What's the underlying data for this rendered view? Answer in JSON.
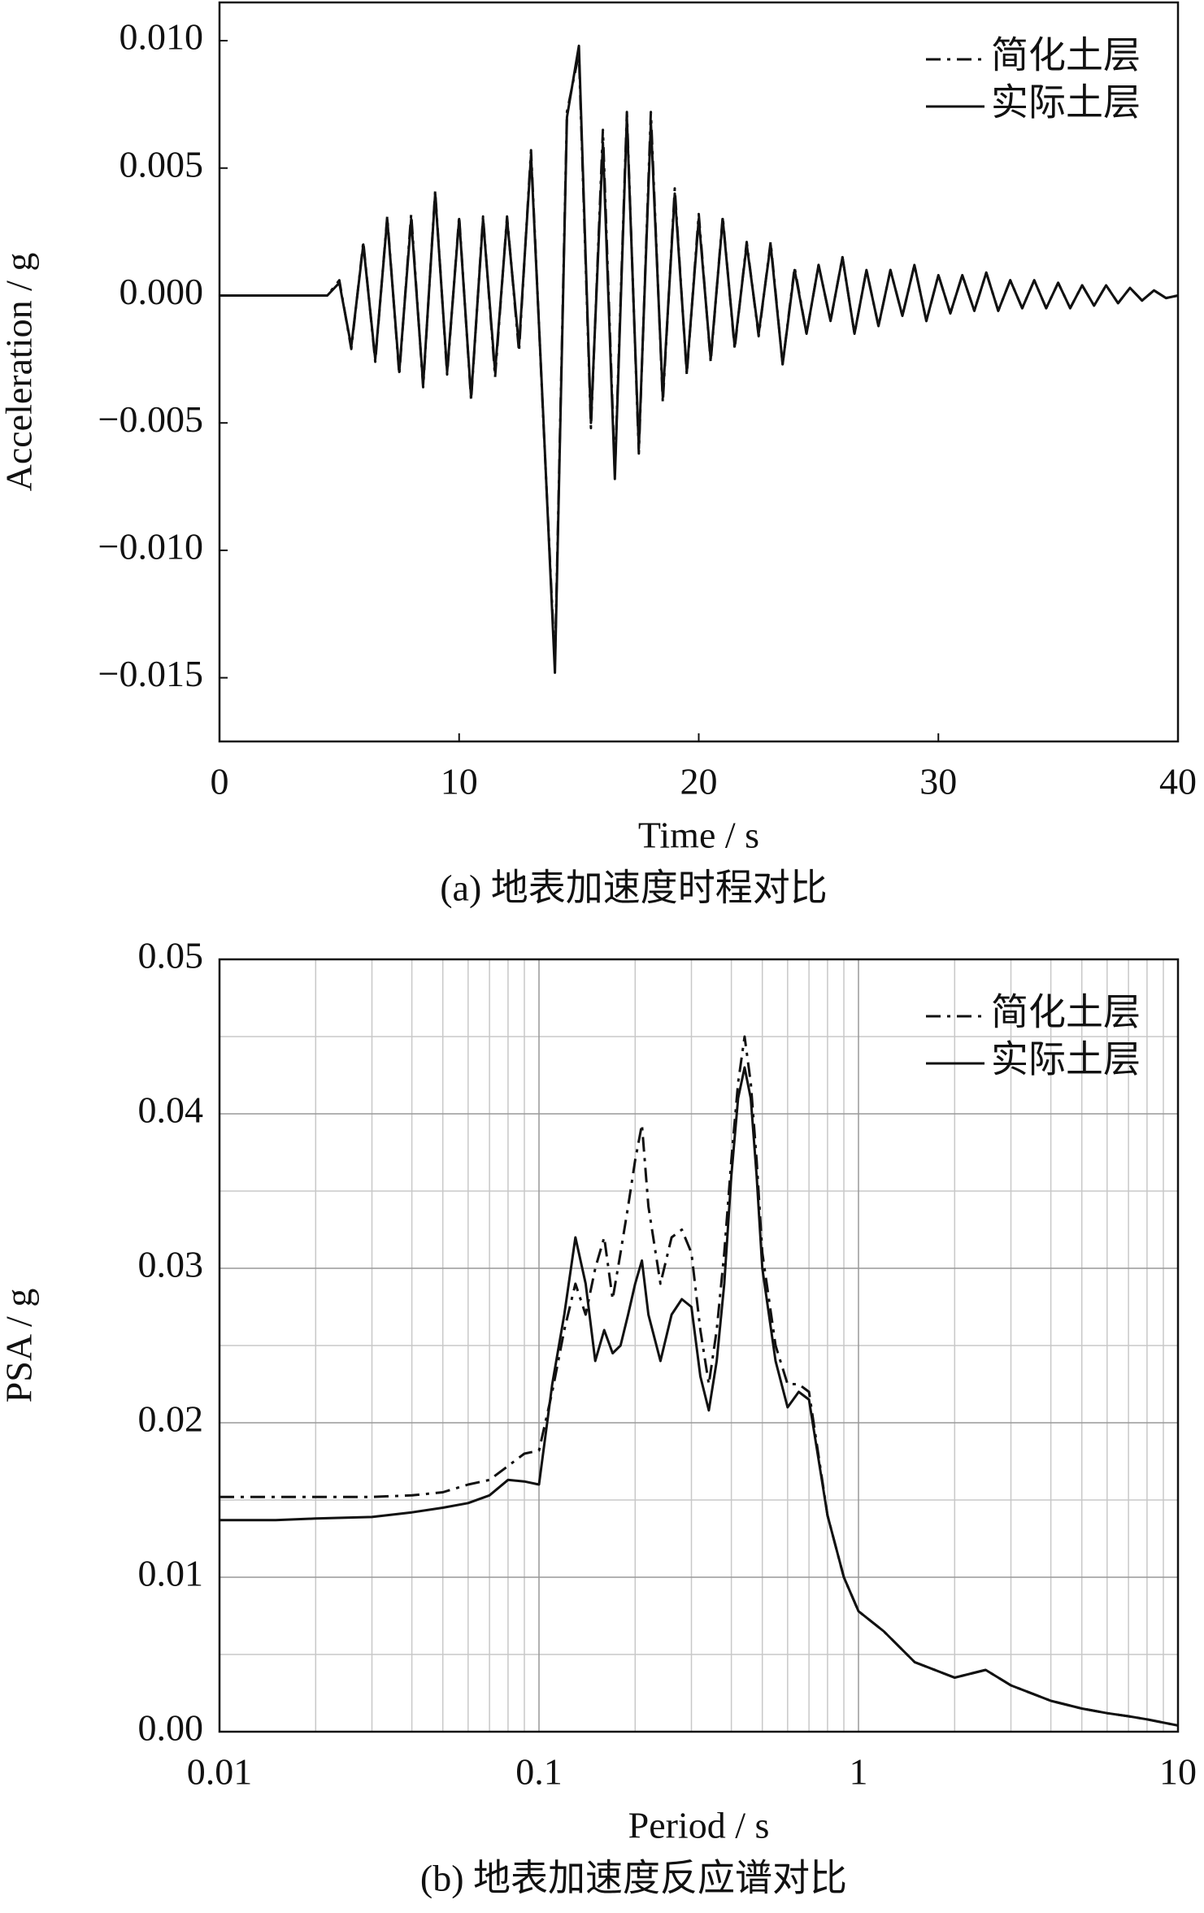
{
  "chart_data": [
    {
      "type": "line",
      "caption": "(a) 地表加速度时程对比",
      "xlabel": "Time / s",
      "ylabel": "Acceleration / g",
      "x": [
        0,
        0.5,
        1,
        1.5,
        2,
        2.5,
        3,
        3.5,
        4,
        4.5,
        5,
        5.5,
        6,
        6.5,
        7,
        7.5,
        8,
        8.5,
        9,
        9.5,
        10,
        10.5,
        11,
        11.5,
        12,
        12.5,
        13,
        13.5,
        14,
        14.5,
        15,
        15.5,
        16,
        16.5,
        17,
        17.5,
        18,
        18.5,
        19,
        19.5,
        20,
        20.5,
        21,
        21.5,
        22,
        22.5,
        23,
        23.5,
        24,
        24.5,
        25,
        25.5,
        26,
        26.5,
        27,
        27.5,
        28,
        28.5,
        29,
        29.5,
        30,
        30.5,
        31,
        31.5,
        32,
        32.5,
        33,
        33.5,
        34,
        34.5,
        35,
        35.5,
        36,
        36.5,
        37,
        37.5,
        38,
        38.5,
        39,
        39.5,
        40
      ],
      "series": [
        {
          "name": "简化土层",
          "style": "dashdot",
          "color": "#111111",
          "values": [
            0,
            0,
            0,
            0,
            0,
            0,
            0,
            0,
            0,
            0,
            0.0006,
            -0.0021,
            0.0021,
            -0.0026,
            0.0031,
            -0.0031,
            0.0032,
            -0.0036,
            0.0041,
            -0.0031,
            0.0031,
            -0.0041,
            0.0031,
            -0.0032,
            0.0031,
            -0.0022,
            0.0057,
            -0.0046,
            -0.0145,
            0.0072,
            0.0095,
            -0.0052,
            0.0065,
            -0.007,
            0.0072,
            -0.0062,
            0.0072,
            -0.0042,
            0.0042,
            -0.0031,
            0.0032,
            -0.0026,
            0.0031,
            -0.0021,
            0.0021,
            -0.0016,
            0.0021,
            -0.0027,
            0.0011,
            -0.0015,
            0.0012,
            -0.001,
            0.0015,
            -0.0015,
            0.001,
            -0.0012,
            0.001,
            -0.0008,
            0.0012,
            -0.001,
            0.0008,
            -0.0007,
            0.0008,
            -0.0006,
            0.0009,
            -0.0006,
            0.0006,
            -0.0005,
            0.0006,
            -0.0005,
            0.0005,
            -0.0005,
            0.0004,
            -0.0004,
            0.0004,
            -0.0003,
            0.0003,
            -0.0002,
            0.0002,
            -0.0001,
            0
          ]
        },
        {
          "name": "实际土层",
          "style": "solid",
          "color": "#111111",
          "values": [
            0,
            0,
            0,
            0,
            0,
            0,
            0,
            0,
            0,
            0,
            0.0005,
            -0.002,
            0.002,
            -0.0025,
            0.003,
            -0.003,
            0.003,
            -0.0035,
            0.004,
            -0.003,
            0.003,
            -0.004,
            0.003,
            -0.003,
            0.003,
            -0.002,
            0.0055,
            -0.0045,
            -0.0148,
            0.007,
            0.0098,
            -0.005,
            0.006,
            -0.0072,
            0.007,
            -0.006,
            0.0068,
            -0.004,
            0.004,
            -0.003,
            0.003,
            -0.0025,
            0.003,
            -0.002,
            0.002,
            -0.0015,
            0.002,
            -0.0027,
            0.001,
            -0.0015,
            0.0012,
            -0.001,
            0.0015,
            -0.0015,
            0.001,
            -0.0012,
            0.001,
            -0.0008,
            0.0012,
            -0.001,
            0.0008,
            -0.0007,
            0.0008,
            -0.0006,
            0.0009,
            -0.0006,
            0.0006,
            -0.0005,
            0.0006,
            -0.0005,
            0.0005,
            -0.0005,
            0.0004,
            -0.0004,
            0.0004,
            -0.0003,
            0.0003,
            -0.0002,
            0.0002,
            -0.0001,
            0
          ]
        }
      ],
      "xlim": [
        0,
        40
      ],
      "xticks": [
        0,
        10,
        20,
        30,
        40
      ],
      "ylim": [
        -0.0175,
        0.0115
      ],
      "yticks": [
        {
          "value": 0.01,
          "label": "0.010"
        },
        0.005,
        {
          "value": 0,
          "label": "0.000"
        },
        {
          "value": -0.005,
          "label": "−0.005"
        },
        {
          "value": -0.01,
          "label": "−0.010"
        },
        {
          "value": -0.015,
          "label": "−0.015"
        }
      ],
      "grid": false,
      "log_x": false,
      "legend": "upper right"
    },
    {
      "type": "line",
      "caption": "(b) 地表加速度反应谱对比",
      "xlabel": "Period / s",
      "ylabel": "PSA / g",
      "x": [
        0.01,
        0.015,
        0.02,
        0.03,
        0.04,
        0.05,
        0.06,
        0.07,
        0.08,
        0.09,
        0.1,
        0.11,
        0.12,
        0.13,
        0.14,
        0.15,
        0.16,
        0.17,
        0.18,
        0.19,
        0.2,
        0.21,
        0.22,
        0.24,
        0.26,
        0.28,
        0.3,
        0.32,
        0.34,
        0.36,
        0.38,
        0.4,
        0.42,
        0.44,
        0.46,
        0.48,
        0.5,
        0.55,
        0.6,
        0.65,
        0.7,
        0.8,
        0.9,
        1,
        1.2,
        1.5,
        2,
        2.5,
        3,
        4,
        5,
        6,
        7,
        8,
        10
      ],
      "series": [
        {
          "name": "简化土层",
          "style": "dashdot",
          "color": "#111111",
          "values": [
            0.0152,
            0.0152,
            0.0152,
            0.0152,
            0.0153,
            0.0155,
            0.016,
            0.0163,
            0.0172,
            0.018,
            0.0182,
            0.022,
            0.026,
            0.029,
            0.027,
            0.03,
            0.032,
            0.028,
            0.031,
            0.034,
            0.037,
            0.0393,
            0.034,
            0.029,
            0.032,
            0.0325,
            0.031,
            0.026,
            0.0225,
            0.026,
            0.031,
            0.037,
            0.042,
            0.045,
            0.042,
            0.037,
            0.031,
            0.025,
            0.0225,
            0.0225,
            0.022,
            0.014,
            0.01,
            0.0078,
            0.0065,
            0.0045,
            0.0035,
            0.004,
            0.003,
            0.002,
            0.0015,
            0.0012,
            0.001,
            0.0008,
            0.0004
          ]
        },
        {
          "name": "实际土层",
          "style": "solid",
          "color": "#111111",
          "values": [
            0.0137,
            0.0137,
            0.0138,
            0.0139,
            0.0142,
            0.0145,
            0.0148,
            0.0153,
            0.0163,
            0.0162,
            0.016,
            0.0225,
            0.027,
            0.032,
            0.029,
            0.024,
            0.026,
            0.0245,
            0.025,
            0.027,
            0.029,
            0.0305,
            0.027,
            0.024,
            0.027,
            0.028,
            0.0275,
            0.023,
            0.0208,
            0.024,
            0.029,
            0.036,
            0.041,
            0.043,
            0.041,
            0.036,
            0.03,
            0.024,
            0.021,
            0.022,
            0.0215,
            0.014,
            0.01,
            0.0078,
            0.0065,
            0.0045,
            0.0035,
            0.004,
            0.003,
            0.002,
            0.0015,
            0.0012,
            0.001,
            0.0008,
            0.0004
          ]
        }
      ],
      "xlim": [
        0.01,
        10
      ],
      "xticks": [
        0.01,
        0.1,
        1,
        10
      ],
      "ylim": [
        0,
        0.05
      ],
      "yticks": [
        {
          "value": 0,
          "label": "0.00"
        },
        0.01,
        0.02,
        0.03,
        0.04,
        0.05
      ],
      "grid": true,
      "minor_grid": true,
      "log_x": true,
      "legend": "upper right"
    }
  ]
}
